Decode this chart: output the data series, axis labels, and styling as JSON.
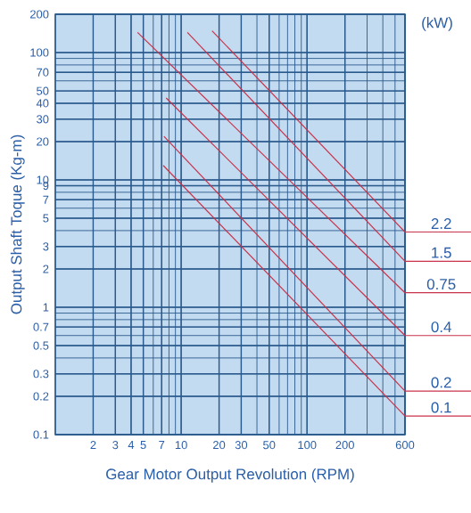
{
  "chart_data": {
    "type": "line",
    "legend_title": "(kW)",
    "xlabel": "Gear Motor Output Revolution (RPM)",
    "ylabel": "Output Shaft Toque (Kg-m)",
    "log": "xy",
    "grid": true,
    "legend": "right",
    "marker": "none",
    "line_style": "solid",
    "xlim": [
      1,
      600
    ],
    "ylim": [
      0.1,
      200
    ],
    "xticks": [
      2,
      3,
      4,
      5,
      7,
      10,
      20,
      30,
      50,
      100,
      200,
      600
    ],
    "yticks": [
      0.1,
      0.2,
      0.3,
      0.5,
      0.7,
      1,
      2,
      3,
      5,
      7,
      9,
      10,
      20,
      30,
      40,
      50,
      70,
      100,
      200
    ],
    "series": [
      {
        "name": "2.2",
        "color": "#c8324a",
        "x": [
          17.6,
          600
        ],
        "values": [
          148,
          3.9
        ]
      },
      {
        "name": "1.5",
        "color": "#c8324a",
        "x": [
          11.2,
          600
        ],
        "values": [
          144,
          2.3
        ]
      },
      {
        "name": "0.75",
        "color": "#c8324a",
        "x": [
          4.5,
          600
        ],
        "values": [
          144,
          1.3
        ]
      },
      {
        "name": "0.4",
        "color": "#c8324a",
        "x": [
          7.6,
          600
        ],
        "values": [
          44,
          0.6
        ]
      },
      {
        "name": "0.2",
        "color": "#c8324a",
        "x": [
          7.3,
          600
        ],
        "values": [
          22,
          0.22
        ]
      },
      {
        "name": "0.1",
        "color": "#c8324a",
        "x": [
          7.2,
          600
        ],
        "values": [
          13,
          0.14
        ]
      }
    ]
  }
}
